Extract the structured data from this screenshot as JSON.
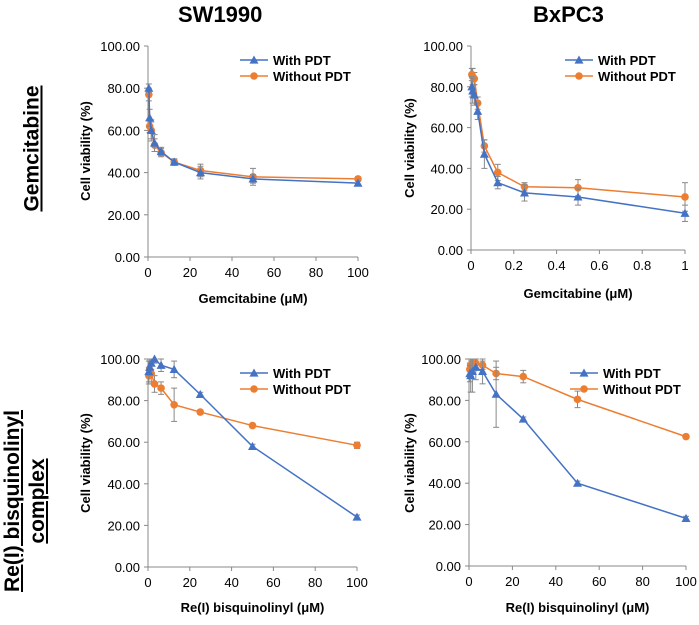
{
  "column_titles": [
    "SW1990",
    "BxPC3"
  ],
  "row_titles": [
    "Gemcitabine",
    "Re(I) bisquinolinyl\ncomplex"
  ],
  "colors": {
    "with_pdt": "#4472C4",
    "without_pdt": "#ED7D31",
    "axis": "#888888",
    "error": "#888888"
  },
  "chart_data": [
    {
      "type": "line",
      "panel": "SW1990-gemcitabine",
      "xlabel": "Gemcitabine (μM)",
      "ylabel": "Cell viability (%)",
      "xlim": [
        0,
        100
      ],
      "ylim": [
        0,
        100
      ],
      "xticks": [
        0,
        20,
        40,
        60,
        80,
        100
      ],
      "xtick_labels": [
        "0",
        "20",
        "40",
        "60",
        "80",
        "100"
      ],
      "yticks": [
        0,
        20,
        40,
        60,
        80,
        100
      ],
      "ytick_labels": [
        "0.00",
        "20.00",
        "40.00",
        "60.00",
        "80.00",
        "100.00"
      ],
      "legend": "top-right",
      "x": [
        0.39,
        0.78,
        1.56,
        3.125,
        6.25,
        12.5,
        25,
        50,
        100
      ],
      "series": [
        {
          "name": "With PDT",
          "marker": "triangle",
          "values": [
            80,
            66,
            60,
            54,
            50,
            45,
            40,
            37,
            35
          ],
          "errors": [
            2,
            4,
            5,
            4,
            2,
            1.5,
            3,
            2,
            1
          ]
        },
        {
          "name": "Without PDT",
          "marker": "circle",
          "values": [
            77,
            62,
            60,
            53,
            49.5,
            45,
            41,
            38,
            37
          ],
          "errors": [
            3,
            3,
            4,
            3,
            2,
            1.5,
            3,
            4,
            1
          ]
        }
      ]
    },
    {
      "type": "line",
      "panel": "BxPC3-gemcitabine",
      "xlabel": "Gemcitabine (μM)",
      "ylabel": "Cell viability (%)",
      "xlim": [
        0,
        1
      ],
      "ylim": [
        0,
        100
      ],
      "xticks": [
        0,
        0.2,
        0.4,
        0.6,
        0.8,
        1
      ],
      "xtick_labels": [
        "0",
        "0.2",
        "0.4",
        "0.6",
        "0.8",
        "1"
      ],
      "yticks": [
        0,
        20,
        40,
        60,
        80,
        100
      ],
      "ytick_labels": [
        "0.00",
        "20.00",
        "40.00",
        "60.00",
        "80.00",
        "100.00"
      ],
      "legend": "top-right",
      "x": [
        0.0039,
        0.0078,
        0.0156,
        0.03125,
        0.0625,
        0.125,
        0.25,
        0.5,
        1
      ],
      "series": [
        {
          "name": "With PDT",
          "marker": "triangle",
          "values": [
            80,
            78,
            76,
            68,
            47,
            33,
            28,
            26,
            18
          ],
          "errors": [
            5,
            6,
            5,
            4,
            7,
            3,
            4,
            4,
            4
          ]
        },
        {
          "name": "Without PDT",
          "marker": "circle",
          "values": [
            86,
            85,
            84,
            72,
            51,
            38,
            31,
            30.5,
            26
          ],
          "errors": [
            3,
            4,
            3,
            3,
            3,
            4,
            2,
            4,
            7
          ]
        }
      ]
    },
    {
      "type": "line",
      "panel": "SW1990-re-complex",
      "xlabel": "Re(I) bisquinolinyl (μM)",
      "ylabel": "Cell viability (%)",
      "xlim": [
        0,
        100
      ],
      "ylim": [
        0,
        100
      ],
      "xticks": [
        0,
        20,
        40,
        60,
        80,
        100
      ],
      "xtick_labels": [
        "0",
        "20",
        "40",
        "60",
        "80",
        "100"
      ],
      "yticks": [
        0,
        20,
        40,
        60,
        80,
        100
      ],
      "ytick_labels": [
        "0.00",
        "20.00",
        "40.00",
        "60.00",
        "80.00",
        "100.00"
      ],
      "legend": "top-right",
      "x": [
        0.39,
        0.78,
        1.56,
        3.125,
        6.25,
        12.5,
        25,
        50,
        100
      ],
      "series": [
        {
          "name": "With PDT",
          "marker": "triangle",
          "values": [
            94,
            96,
            98,
            100,
            97,
            95,
            83,
            58,
            24
          ],
          "errors": [
            5,
            4,
            3,
            2,
            3,
            4,
            1,
            1,
            1
          ]
        },
        {
          "name": "Without PDT",
          "marker": "circle",
          "values": [
            92,
            95,
            93,
            88,
            86,
            78,
            74.5,
            68,
            58.5
          ],
          "errors": [
            4,
            4,
            5,
            4,
            3,
            8,
            1,
            1,
            1.5
          ]
        }
      ]
    },
    {
      "type": "line",
      "panel": "BxPC3-re-complex",
      "xlabel": "Re(I) bisquinolinyl (μM)",
      "ylabel": "Cell viability (%)",
      "xlim": [
        0,
        100
      ],
      "ylim": [
        0,
        100
      ],
      "xticks": [
        0,
        20,
        40,
        60,
        80,
        100
      ],
      "xtick_labels": [
        "0",
        "20",
        "40",
        "60",
        "80",
        "100"
      ],
      "yticks": [
        0,
        20,
        40,
        60,
        80,
        100
      ],
      "ytick_labels": [
        "0.00",
        "20.00",
        "40.00",
        "60.00",
        "80.00",
        "100.00"
      ],
      "legend": "top-right",
      "x": [
        0.39,
        0.78,
        1.56,
        3.125,
        6.25,
        12.5,
        25,
        50,
        100
      ],
      "series": [
        {
          "name": "With PDT",
          "marker": "triangle",
          "values": [
            93,
            92,
            94,
            96,
            94,
            83,
            71,
            40,
            23
          ],
          "errors": [
            4,
            8,
            10,
            6,
            6,
            16,
            1,
            1,
            1
          ]
        },
        {
          "name": "Without PDT",
          "marker": "circle",
          "values": [
            95,
            97,
            98,
            98,
            97,
            93,
            91.5,
            80.5,
            62.5
          ],
          "errors": [
            3,
            3,
            2,
            2,
            2,
            3,
            3,
            4,
            1
          ]
        }
      ]
    }
  ]
}
